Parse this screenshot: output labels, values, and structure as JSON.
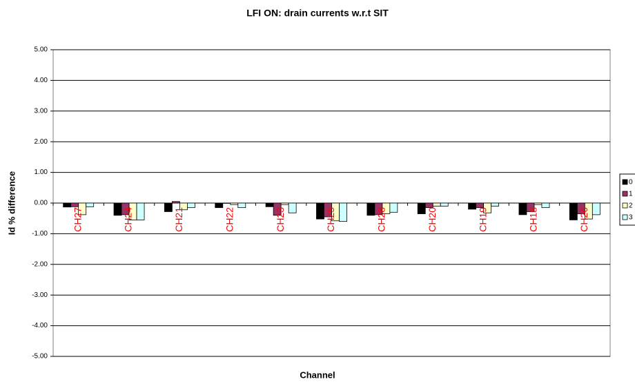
{
  "chart_data": {
    "type": "bar",
    "title": "LFI ON: drain currents w.r.t  SIT",
    "x_label": "Channel",
    "y_label": "Id % difference",
    "categories": [
      "CH27",
      "CH24",
      "CH21",
      "CH22",
      "CH23",
      "CH25",
      "CH28",
      "CH20",
      "CH19",
      "CH18",
      "CH26"
    ],
    "series": [
      {
        "name": "0",
        "color": "#000000",
        "values": [
          -0.13,
          -0.4,
          -0.28,
          -0.15,
          -0.12,
          -0.52,
          -0.4,
          -0.35,
          -0.2,
          -0.38,
          -0.55
        ]
      },
      {
        "name": "1",
        "color": "#993366",
        "values": [
          -0.12,
          -0.38,
          0.05,
          -0.01,
          -0.4,
          -0.45,
          -0.38,
          -0.15,
          -0.15,
          -0.28,
          -0.35
        ]
      },
      {
        "name": "2",
        "color": "#ffffcc",
        "values": [
          -0.38,
          -0.55,
          -0.22,
          -0.05,
          -0.05,
          -0.58,
          -0.35,
          -0.1,
          -0.32,
          -0.05,
          -0.52
        ]
      },
      {
        "name": "3",
        "color": "#ccffff",
        "values": [
          -0.12,
          -0.55,
          -0.15,
          -0.15,
          -0.32,
          -0.6,
          -0.3,
          -0.1,
          -0.1,
          -0.15,
          -0.38
        ]
      }
    ],
    "ylim": [
      -5,
      5
    ],
    "yticks": [
      {
        "value": -5,
        "label": "-5.00"
      },
      {
        "value": -4,
        "label": "-4.00"
      },
      {
        "value": -3,
        "label": "-3.00"
      },
      {
        "value": -2,
        "label": "-2.00"
      },
      {
        "value": -1,
        "label": "-1.00"
      },
      {
        "value": 0,
        "label": "0.00"
      },
      {
        "value": 1,
        "label": "1.00"
      },
      {
        "value": 2,
        "label": "2.00"
      },
      {
        "value": 3,
        "label": "3.00"
      },
      {
        "value": 4,
        "label": "4.00"
      },
      {
        "value": 5,
        "label": "5.00"
      }
    ],
    "grid": true,
    "legend": "right",
    "category_label_color": "#ff0000"
  }
}
